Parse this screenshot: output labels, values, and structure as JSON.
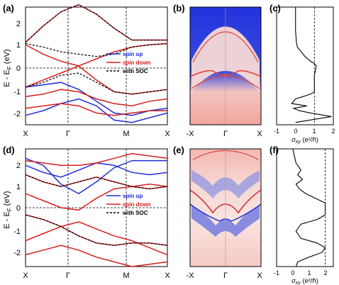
{
  "figure": {
    "panels": [
      {
        "id": "a",
        "label": "(a)",
        "ylabel": "E - E",
        "ylabel_sub": "F",
        "ylabel_unit": " (eV)",
        "yticks": [
          "2",
          "1",
          "0",
          "-1",
          "-2"
        ],
        "xticks": [
          "X",
          "Γ",
          "M",
          "X"
        ],
        "legend": [
          {
            "name": "spin up",
            "color": "#1f2ed6",
            "dash": false
          },
          {
            "name": "spin down",
            "color": "#d81e1e",
            "dash": false
          },
          {
            "name": "with SOC",
            "color": "#000000",
            "dash": true
          }
        ]
      },
      {
        "id": "b",
        "label": "(b)",
        "xticks": [
          "-X",
          "Γ",
          "X"
        ]
      },
      {
        "id": "c",
        "label": "(c)",
        "xticks": [
          "-1",
          "0",
          "1",
          "2"
        ],
        "xlabel": "σ",
        "xlabel_sub": "xy",
        "xlabel_unit": "(e²/ℏ)"
      },
      {
        "id": "d",
        "label": "(d)",
        "ylabel": "E - E",
        "ylabel_sub": "F",
        "ylabel_unit": " (eV)",
        "yticks": [
          "2",
          "1",
          "0",
          "-1",
          "-2"
        ],
        "xticks": [
          "X",
          "Γ",
          "M",
          "X"
        ],
        "legend": [
          {
            "name": "spin up",
            "color": "#1f2ed6",
            "dash": false
          },
          {
            "name": "spin down",
            "color": "#d81e1e",
            "dash": false
          },
          {
            "name": "with SOC",
            "color": "#000000",
            "dash": true
          }
        ]
      },
      {
        "id": "e",
        "label": "(e)",
        "xticks": [
          "-X",
          "Γ",
          "X"
        ]
      },
      {
        "id": "f",
        "label": "(f)",
        "xticks": [
          "-1",
          "0",
          "1",
          "2"
        ],
        "xlabel": "σ",
        "xlabel_sub": "xy",
        "xlabel_unit": "(e²/ℏ)"
      }
    ],
    "colors": {
      "spin_up": "#1f2ed6",
      "spin_down": "#d81e1e",
      "soc": "#000000",
      "map_blue": "#1a2bd8",
      "map_red": "#f3b0a8"
    }
  },
  "chart_data": [
    {
      "type": "line",
      "panel": "a",
      "ylim": [
        -2.5,
        2.5
      ],
      "kpath": [
        "X",
        "Γ",
        "M",
        "X"
      ],
      "series": [
        {
          "name": "spin up",
          "bands": [
            [
              -0.9,
              -0.8,
              -0.7,
              -1.0,
              -1.5,
              -2.0,
              -2.1,
              -1.9,
              -1.8
            ],
            [
              -2.1,
              -1.9,
              -1.6,
              -1.4,
              -1.7,
              -2.3,
              -2.4,
              -2.2,
              -2.0
            ]
          ]
        },
        {
          "name": "spin down",
          "bands": [
            [
              1.0,
              1.7,
              2.3,
              2.6,
              2.2,
              1.6,
              1.1,
              1.1,
              1.1
            ],
            [
              0.9,
              0.5,
              0.2,
              0.0,
              0.3,
              0.6,
              0.8,
              0.9,
              0.95
            ],
            [
              -0.9,
              -0.6,
              -0.3,
              0.0,
              -0.6,
              -1.1,
              -1.2,
              -1.1,
              -1.0
            ],
            [
              -1.3,
              -1.2,
              -1.0,
              -1.1,
              -1.4,
              -1.6,
              -1.7,
              -1.5,
              -1.4
            ],
            [
              -1.8,
              -1.7,
              -1.6,
              -1.7,
              -2.0,
              -2.1,
              -2.0,
              -1.9,
              -1.9
            ]
          ]
        },
        {
          "name": "with SOC",
          "bands": [
            [
              1.0,
              1.7,
              2.3,
              2.6,
              2.2,
              1.6,
              1.1,
              1.1,
              1.1
            ],
            [
              0.95,
              0.8,
              0.6,
              0.5,
              0.4,
              0.5,
              0.8,
              0.9,
              0.95
            ],
            [
              -0.9,
              -0.7,
              -0.4,
              -0.3,
              -0.7,
              -1.1,
              -1.2,
              -1.1,
              -1.0
            ]
          ]
        }
      ]
    },
    {
      "type": "line",
      "panel": "c",
      "xlim": [
        -1,
        2
      ],
      "ylim": [
        -2.5,
        2.5
      ],
      "x": [
        0,
        0,
        0.05,
        0.1,
        0.3,
        0.5,
        0.8,
        1.0,
        1.1,
        1.05,
        1.0,
        1.0,
        1.0,
        0.8,
        0.4,
        0.0,
        -0.2,
        0.6,
        -0.1,
        0.2,
        0.8,
        1.9,
        0.0
      ],
      "y": [
        2.5,
        1.5,
        1.0,
        0.8,
        0.6,
        0.4,
        0.2,
        0.1,
        0.0,
        -0.2,
        -0.4,
        -0.8,
        -1.1,
        -1.2,
        -1.3,
        -1.4,
        -1.6,
        -1.7,
        -1.8,
        -1.9,
        -2.0,
        -2.15,
        -2.4
      ],
      "reference_x": 1
    },
    {
      "type": "line",
      "panel": "d",
      "ylim": [
        -2.5,
        2.5
      ],
      "kpath": [
        "X",
        "Γ",
        "M",
        "X"
      ],
      "series": [
        {
          "name": "spin up",
          "bands": [
            [
              2.1,
              1.8,
              1.0,
              0.6,
              1.1,
              1.7,
              2.0,
              2.0,
              2.0
            ],
            [
              1.8,
              1.5,
              1.3,
              1.6,
              1.9,
              1.8,
              1.5,
              1.4,
              1.5
            ]
          ]
        },
        {
          "name": "spin down",
          "bands": [
            [
              2.0,
              1.9,
              1.8,
              1.8,
              1.9,
              2.1,
              2.3,
              2.2,
              2.1
            ],
            [
              1.4,
              1.1,
              0.9,
              1.1,
              1.3,
              1.1,
              0.9,
              0.8,
              0.9
            ],
            [
              0.6,
              0.3,
              0.0,
              -0.1,
              0.4,
              0.8,
              0.9,
              1.0,
              0.9
            ],
            [
              -0.3,
              -0.5,
              -0.8,
              -1.2,
              -1.5,
              -1.6,
              -1.5,
              -1.5,
              -1.6
            ],
            [
              -1.4,
              -1.1,
              -0.8,
              -0.6,
              -0.9,
              -1.2,
              -1.4,
              -1.7,
              -2.0
            ],
            [
              -2.0,
              -1.8,
              -1.6,
              -1.8,
              -2.1,
              -2.3,
              -2.5,
              -2.4,
              -2.3
            ]
          ]
        },
        {
          "name": "with SOC",
          "bands": [
            [
              1.4,
              1.1,
              0.9,
              1.1,
              1.3,
              1.1,
              0.9,
              0.8,
              0.9
            ],
            [
              -0.3,
              -0.5,
              -0.8,
              -1.2,
              -1.5,
              -1.6,
              -1.5,
              -1.5,
              -1.6
            ]
          ]
        }
      ]
    },
    {
      "type": "line",
      "panel": "f",
      "xlim": [
        -1,
        2.5
      ],
      "ylim": [
        -2.5,
        2.5
      ],
      "x": [
        0,
        0.1,
        0.2,
        0.5,
        0.3,
        0.6,
        0.2,
        0.4,
        0.8,
        1.4,
        2.0,
        2.0,
        1.5,
        0.5,
        0.2,
        0.5,
        1.5,
        2.0,
        1.8,
        1.0,
        0.3,
        0.2
      ],
      "y": [
        2.5,
        2.2,
        1.9,
        1.6,
        1.4,
        1.2,
        1.0,
        0.8,
        0.6,
        0.4,
        0.2,
        -0.3,
        -0.5,
        -0.7,
        -1.0,
        -1.3,
        -1.5,
        -1.7,
        -1.9,
        -2.1,
        -2.3,
        -2.5
      ],
      "reference_x": 2
    }
  ]
}
